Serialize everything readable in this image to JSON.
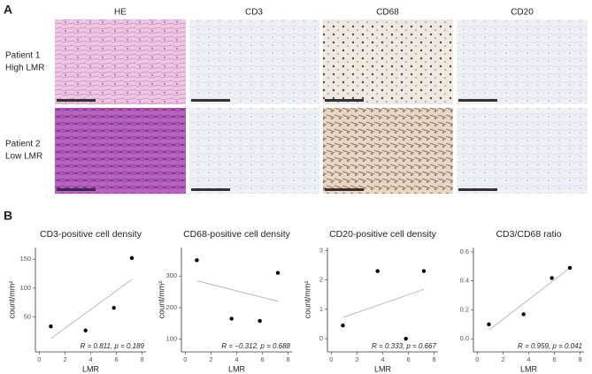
{
  "panel_a": {
    "label": "A",
    "columns": [
      "HE",
      "CD3",
      "CD68",
      "CD20"
    ],
    "rows": [
      [
        "Patient 1",
        "High LMR"
      ],
      [
        "Patient 2",
        "Low LMR"
      ]
    ]
  },
  "panel_b": {
    "label": "B"
  },
  "chart_data": [
    {
      "type": "scatter",
      "title": "CD3-positive cell density",
      "ylabel": "count/mm²",
      "xlabel": "LMR",
      "x": [
        0.9,
        3.6,
        5.8,
        7.2
      ],
      "values": [
        34,
        27,
        66,
        152
      ],
      "color": "#000000",
      "trend": {
        "x": [
          0.9,
          7.2
        ],
        "y": [
          13,
          115
        ]
      },
      "trend_color": "#bbbbbb",
      "annotation": "R = 0.811, p = 0.189",
      "xlim": [
        -0.3,
        8.3
      ],
      "xticks": [
        0,
        2,
        4,
        6,
        8
      ],
      "ylim": [
        -10,
        170
      ],
      "yticks": [
        50,
        100,
        150
      ]
    },
    {
      "type": "scatter",
      "title": "CD68-positive cell density",
      "ylabel": "count/mm²",
      "xlabel": "LMR",
      "x": [
        0.9,
        3.6,
        5.8,
        7.2
      ],
      "values": [
        350,
        165,
        158,
        310
      ],
      "color": "#000000",
      "trend": {
        "x": [
          0.9,
          7.2
        ],
        "y": [
          285,
          220
        ]
      },
      "trend_color": "#bbbbbb",
      "annotation": "R = −0.312, p = 0.688",
      "xlim": [
        -0.3,
        8.3
      ],
      "xticks": [
        0,
        2,
        4,
        6,
        8
      ],
      "ylim": [
        60,
        390
      ],
      "yticks": [
        100,
        200,
        300
      ]
    },
    {
      "type": "scatter",
      "title": "CD20-positive cell density",
      "ylabel": "count/mm²",
      "xlabel": "LMR",
      "x": [
        0.9,
        3.6,
        5.8,
        7.2
      ],
      "values": [
        0.45,
        2.3,
        0,
        2.3
      ],
      "color": "#000000",
      "trend": {
        "x": [
          0.9,
          7.2
        ],
        "y": [
          0.72,
          1.68
        ]
      },
      "trend_color": "#bbbbbb",
      "annotation": "R = 0.333, p = 0.667",
      "xlim": [
        -0.3,
        8.3
      ],
      "xticks": [
        0,
        2,
        4,
        6,
        8
      ],
      "ylim": [
        -0.45,
        3.1
      ],
      "yticks": [
        0,
        1,
        2,
        3
      ]
    },
    {
      "type": "scatter",
      "title": "CD3/CD68 ratio",
      "xlabel": "LMR",
      "x": [
        0.9,
        3.6,
        5.8,
        7.2
      ],
      "values": [
        0.1,
        0.17,
        0.42,
        0.49
      ],
      "color": "#000000",
      "trend": {
        "x": [
          0.9,
          7.2
        ],
        "y": [
          0.06,
          0.49
        ]
      },
      "trend_color": "#bbbbbb",
      "annotation": "R = 0.959, p = 0.041",
      "xlim": [
        -0.3,
        8.3
      ],
      "xticks": [
        0,
        2,
        4,
        6,
        8
      ],
      "ylim": [
        -0.09,
        0.63
      ],
      "yticks": [
        {
          "value": 0,
          "label": "0.0"
        },
        0.2,
        0.4,
        0.6
      ]
    }
  ]
}
